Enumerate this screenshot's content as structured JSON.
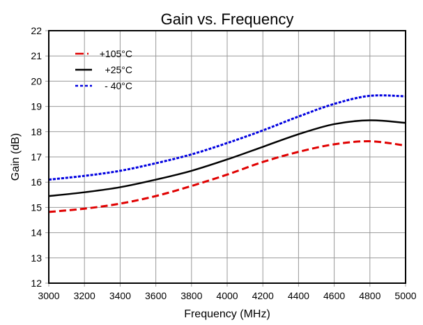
{
  "chart_data": {
    "type": "line",
    "title": "Gain vs. Frequency",
    "xlabel": "Frequency (MHz)",
    "ylabel": "Gain (dB)",
    "xlim": [
      3000,
      5000
    ],
    "ylim": [
      12,
      22
    ],
    "xticks": [
      3000,
      3200,
      3400,
      3600,
      3800,
      4000,
      4200,
      4400,
      4600,
      4800,
      5000
    ],
    "yticks": [
      12,
      13,
      14,
      15,
      16,
      17,
      18,
      19,
      20,
      21,
      22
    ],
    "grid": true,
    "legend_position": "top-left",
    "x": [
      3000,
      3200,
      3400,
      3600,
      3800,
      4000,
      4200,
      4400,
      4600,
      4800,
      5000
    ],
    "series": [
      {
        "name": "+105°C",
        "color": "#e00000",
        "style": "dash-dot",
        "values": [
          14.82,
          14.95,
          15.15,
          15.45,
          15.85,
          16.3,
          16.8,
          17.2,
          17.5,
          17.62,
          17.45
        ]
      },
      {
        "name": "+25°C",
        "color": "#000000",
        "style": "solid",
        "values": [
          15.45,
          15.6,
          15.8,
          16.1,
          16.45,
          16.9,
          17.4,
          17.9,
          18.3,
          18.45,
          18.35
        ]
      },
      {
        "name": "- 40°C",
        "color": "#0000e0",
        "style": "dotted",
        "values": [
          16.1,
          16.25,
          16.45,
          16.75,
          17.1,
          17.55,
          18.05,
          18.6,
          19.1,
          19.42,
          19.4
        ]
      }
    ]
  }
}
